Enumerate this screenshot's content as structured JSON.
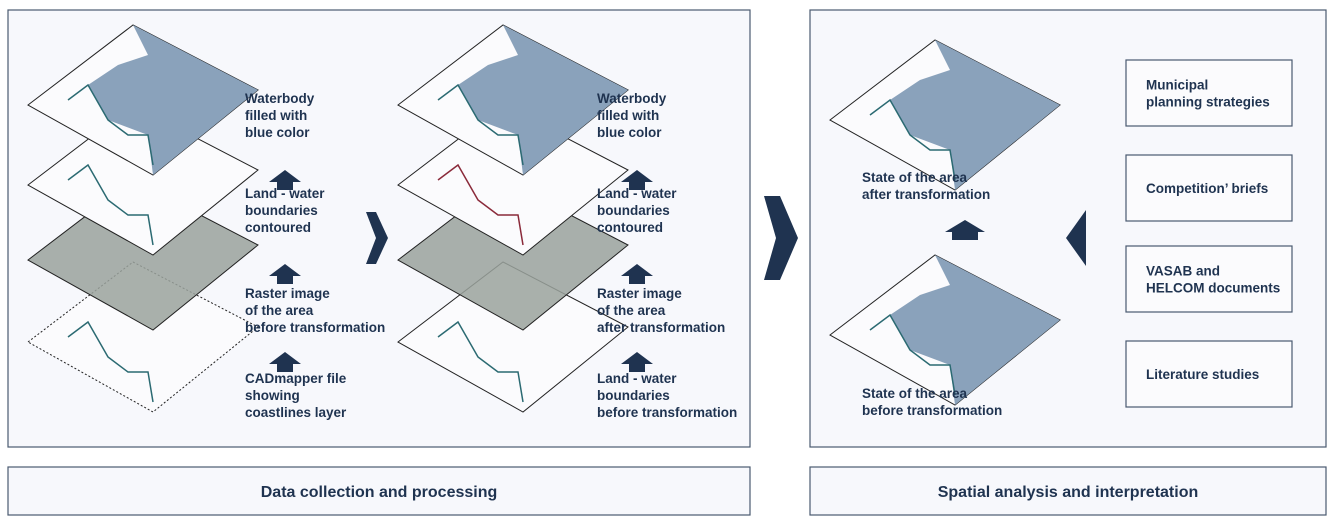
{
  "panels": [
    {
      "caption": "Data collection and processing",
      "stacks": [
        {
          "labels": [
            [
              "Waterbody",
              "filled with",
              "blue color"
            ],
            [
              "Land - water",
              "boundaries",
              "contoured"
            ],
            [
              "Raster image",
              "of the area",
              "before transformation"
            ],
            [
              "CADmapper file",
              "showing",
              "coastlines layer"
            ]
          ]
        },
        {
          "labels": [
            [
              "Waterbody",
              "filled with",
              "blue color"
            ],
            [
              "Land - water",
              "boundaries",
              "contoured"
            ],
            [
              "Raster image",
              "of the area",
              "after transformation"
            ],
            [
              "Land - water",
              "boundaries",
              "before transformation"
            ]
          ]
        }
      ]
    },
    {
      "caption": "Spatial analysis and interpretation",
      "states": [
        [
          "State of the area",
          "after transformation"
        ],
        [
          "State of the area",
          "before transformation"
        ]
      ],
      "sources": [
        [
          "Municipal",
          "planning strategies"
        ],
        [
          "Competition’ briefs"
        ],
        [
          "VASAB and",
          "HELCOM documents"
        ],
        [
          "Literature studies"
        ]
      ]
    }
  ]
}
